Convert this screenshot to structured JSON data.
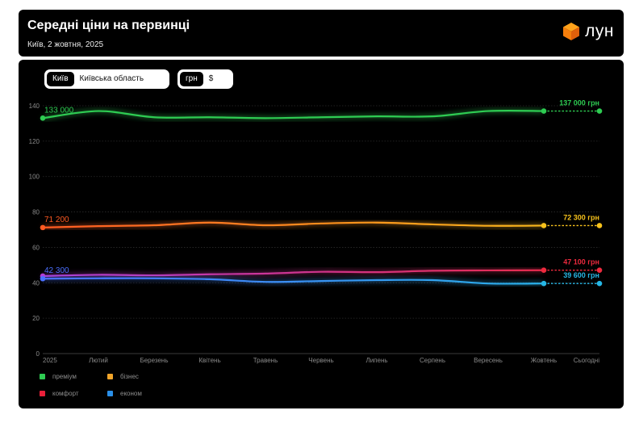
{
  "header": {
    "title": "Середні ціни на первинці",
    "subtitle": "Київ, 2 жовтня, 2025",
    "logo_text": "лун",
    "logo_icon": "orange-cube-icon"
  },
  "controls": {
    "region": {
      "options": [
        "Київ",
        "Київська область"
      ],
      "selected": "Київ"
    },
    "currency": {
      "options": [
        "грн",
        "$"
      ],
      "selected": "грн"
    }
  },
  "chart_data": {
    "type": "line",
    "categories": [
      "2025",
      "Лютий",
      "Березень",
      "Квітень",
      "Травень",
      "Червень",
      "Липень",
      "Серпень",
      "Вересень",
      "Жовтень",
      "Сьогодні"
    ],
    "ylim": [
      0,
      140
    ],
    "yticks": [
      "0",
      "20",
      "40",
      "60",
      "80",
      "100",
      "120",
      "140"
    ],
    "grid": true,
    "legend_position": "bottom-left",
    "series": [
      {
        "name": "преміум",
        "color": "#2ecc52",
        "colors": [
          "#2ecc52",
          "#2ecc52"
        ],
        "values": [
          133,
          137,
          133.5,
          133.5,
          133,
          133.5,
          134,
          134,
          137,
          137,
          137
        ],
        "start_label": "133 000",
        "end_label": "137 000 грн"
      },
      {
        "name": "бізнес",
        "color": "#f2b91b",
        "colors": [
          "#ff5a22",
          "#f7c21c"
        ],
        "values": [
          71.2,
          72,
          72.5,
          74,
          72.5,
          73.5,
          74,
          73,
          72.2,
          72.3,
          72.3
        ],
        "start_label": "71 200",
        "end_label": "72 300 грн"
      },
      {
        "name": "комфорт",
        "color": "#e9203a",
        "colors": [
          "#b23dd6",
          "#ee2a3e"
        ],
        "values": [
          43.8,
          44.5,
          44.2,
          44.8,
          45.2,
          46.2,
          46,
          46.8,
          47,
          47.1,
          47.1
        ],
        "start_label": "",
        "end_label": "47 100 грн"
      },
      {
        "name": "економ",
        "color": "#2aa7e2",
        "colors": [
          "#4a70ff",
          "#26b7e6"
        ],
        "values": [
          42.3,
          42.5,
          42.5,
          42,
          40.5,
          41,
          41.5,
          41.5,
          39.6,
          39.6,
          39.6
        ],
        "start_label": "42 300",
        "end_label": "39 600 грн"
      }
    ]
  }
}
